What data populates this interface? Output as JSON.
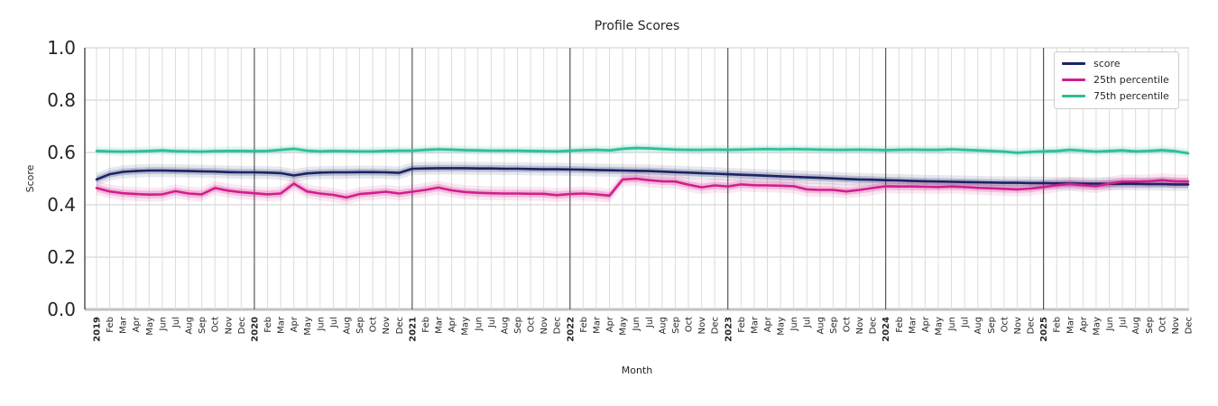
{
  "chart_data": {
    "type": "line",
    "title": "Profile Scores",
    "xlabel": "Month",
    "ylabel": "Score",
    "ylim": [
      0.0,
      1.0
    ],
    "yticks": [
      0.0,
      0.2,
      0.4,
      0.6,
      0.8,
      1.0
    ],
    "grid": true,
    "legend_position": "upper right",
    "x_tick_years": [
      "2019",
      "2020",
      "2021",
      "2022",
      "2023",
      "2024",
      "2025"
    ],
    "x_tick_months": [
      "Feb",
      "Mar",
      "Apr",
      "May",
      "Jun",
      "Jul",
      "Aug",
      "Sep",
      "Oct",
      "Nov",
      "Dec"
    ],
    "x_note": "84 monthly points, Jan 2019 - Dec 2025; January ticks labeled with bold year",
    "series": [
      {
        "name": "score",
        "color": "#1b2365",
        "band_halfwidth": 0.013,
        "values": [
          0.497,
          0.517,
          0.526,
          0.529,
          0.531,
          0.531,
          0.53,
          0.529,
          0.528,
          0.527,
          0.525,
          0.524,
          0.524,
          0.523,
          0.521,
          0.512,
          0.52,
          0.523,
          0.524,
          0.524,
          0.525,
          0.525,
          0.524,
          0.522,
          0.538,
          0.539,
          0.54,
          0.54,
          0.54,
          0.539,
          0.539,
          0.538,
          0.538,
          0.537,
          0.536,
          0.536,
          0.535,
          0.534,
          0.533,
          0.532,
          0.531,
          0.53,
          0.529,
          0.527,
          0.525,
          0.523,
          0.521,
          0.519,
          0.517,
          0.515,
          0.513,
          0.511,
          0.509,
          0.507,
          0.505,
          0.503,
          0.501,
          0.499,
          0.497,
          0.496,
          0.494,
          0.493,
          0.491,
          0.49,
          0.489,
          0.488,
          0.487,
          0.486,
          0.485,
          0.484,
          0.484,
          0.483,
          0.483,
          0.482,
          0.482,
          0.481,
          0.481,
          0.48,
          0.48,
          0.48,
          0.479,
          0.479,
          0.478,
          0.478
        ]
      },
      {
        "name": "25th percentile",
        "color": "#d21e8c",
        "band_halfwidth": 0.014,
        "values": [
          0.464,
          0.451,
          0.444,
          0.441,
          0.439,
          0.44,
          0.452,
          0.443,
          0.44,
          0.464,
          0.454,
          0.448,
          0.444,
          0.44,
          0.443,
          0.481,
          0.451,
          0.443,
          0.438,
          0.428,
          0.441,
          0.445,
          0.45,
          0.443,
          0.45,
          0.457,
          0.466,
          0.455,
          0.449,
          0.446,
          0.444,
          0.443,
          0.443,
          0.442,
          0.442,
          0.437,
          0.441,
          0.443,
          0.44,
          0.435,
          0.497,
          0.5,
          0.494,
          0.49,
          0.489,
          0.477,
          0.467,
          0.474,
          0.47,
          0.478,
          0.475,
          0.474,
          0.473,
          0.471,
          0.459,
          0.457,
          0.457,
          0.451,
          0.457,
          0.464,
          0.471,
          0.47,
          0.47,
          0.469,
          0.468,
          0.47,
          0.468,
          0.465,
          0.463,
          0.461,
          0.459,
          0.462,
          0.468,
          0.475,
          0.48,
          0.475,
          0.471,
          0.481,
          0.489,
          0.489,
          0.49,
          0.494,
          0.49,
          0.489
        ]
      },
      {
        "name": "75th percentile",
        "color": "#2cbd98",
        "band_halfwidth": 0.009,
        "values": [
          0.606,
          0.604,
          0.603,
          0.604,
          0.606,
          0.608,
          0.605,
          0.604,
          0.603,
          0.605,
          0.606,
          0.606,
          0.605,
          0.606,
          0.61,
          0.614,
          0.607,
          0.604,
          0.606,
          0.605,
          0.604,
          0.604,
          0.606,
          0.607,
          0.607,
          0.61,
          0.612,
          0.611,
          0.609,
          0.608,
          0.607,
          0.607,
          0.607,
          0.606,
          0.605,
          0.604,
          0.607,
          0.609,
          0.61,
          0.608,
          0.614,
          0.617,
          0.616,
          0.613,
          0.611,
          0.61,
          0.61,
          0.611,
          0.61,
          0.611,
          0.612,
          0.613,
          0.612,
          0.613,
          0.612,
          0.611,
          0.61,
          0.61,
          0.611,
          0.61,
          0.609,
          0.61,
          0.611,
          0.61,
          0.61,
          0.612,
          0.61,
          0.608,
          0.606,
          0.603,
          0.599,
          0.602,
          0.604,
          0.606,
          0.61,
          0.607,
          0.603,
          0.606,
          0.608,
          0.604,
          0.606,
          0.609,
          0.605,
          0.597
        ]
      }
    ],
    "style": {
      "grid_color_h": "#cccccc",
      "grid_color_month": "#dcdcdc",
      "year_line_color": "#3c3c3c",
      "spine_color": "#3c3c3c",
      "baseline_color": "#c3c3c3",
      "text_color": "#262626"
    }
  }
}
